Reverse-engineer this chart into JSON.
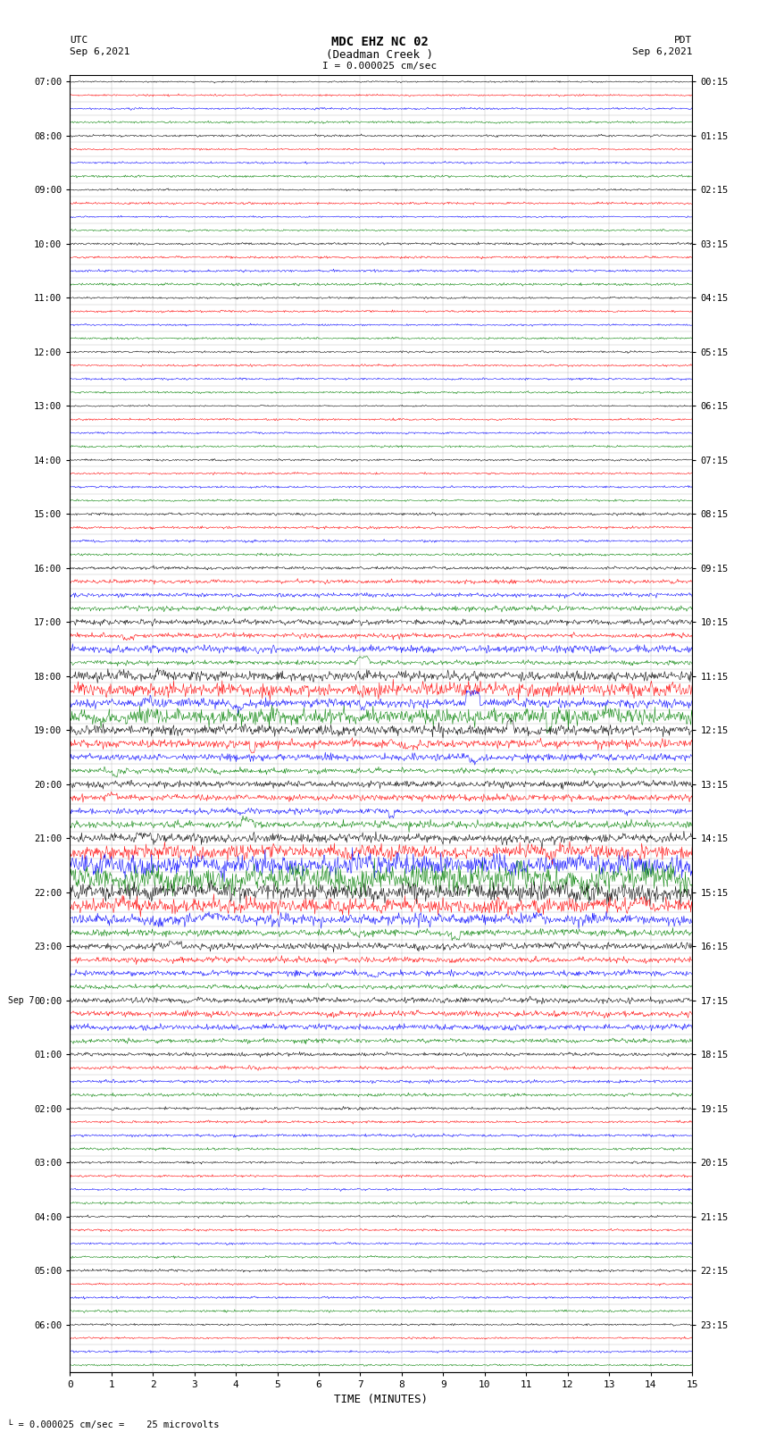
{
  "title_line1": "MDC EHZ NC 02",
  "title_line2": "(Deadman Creek )",
  "title_line3": "I = 0.000025 cm/sec",
  "utc_label": "UTC",
  "utc_date": "Sep 6,2021",
  "pdt_label": "PDT",
  "pdt_date": "Sep 6,2021",
  "xlabel": "TIME (MINUTES)",
  "bottom_note": "= 0.000025 cm/sec =    25 microvolts",
  "background_color": "#ffffff",
  "grid_color": "#aaaaaa",
  "trace_colors": [
    "black",
    "red",
    "blue",
    "green"
  ],
  "xlim": [
    0,
    15
  ],
  "xticks": [
    0,
    1,
    2,
    3,
    4,
    5,
    6,
    7,
    8,
    9,
    10,
    11,
    12,
    13,
    14,
    15
  ],
  "utc_times": [
    "07:00",
    "08:00",
    "09:00",
    "10:00",
    "11:00",
    "12:00",
    "13:00",
    "14:00",
    "15:00",
    "16:00",
    "17:00",
    "18:00",
    "19:00",
    "20:00",
    "21:00",
    "22:00",
    "23:00",
    "00:00",
    "01:00",
    "02:00",
    "03:00",
    "04:00",
    "05:00",
    "06:00"
  ],
  "pdt_times": [
    "00:15",
    "01:15",
    "02:15",
    "03:15",
    "04:15",
    "05:15",
    "06:15",
    "07:15",
    "08:15",
    "09:15",
    "10:15",
    "11:15",
    "12:15",
    "13:15",
    "14:15",
    "15:15",
    "16:15",
    "17:15",
    "18:15",
    "19:15",
    "20:15",
    "21:15",
    "22:15",
    "23:15"
  ],
  "sep7_utc_index": 17,
  "noise_seed": 42,
  "num_hours": 24,
  "traces_per_hour": 4,
  "amplitude_profile": [
    0.25,
    0.25,
    0.25,
    0.25,
    0.3,
    0.28,
    0.28,
    0.28,
    0.25,
    0.25,
    0.25,
    0.25,
    0.35,
    0.3,
    0.3,
    0.3,
    0.25,
    0.25,
    0.25,
    0.25,
    0.25,
    0.25,
    0.25,
    0.25,
    0.25,
    0.25,
    0.25,
    0.25,
    0.25,
    0.25,
    0.25,
    0.25,
    0.3,
    0.3,
    0.3,
    0.3,
    0.45,
    0.5,
    0.55,
    0.6,
    0.7,
    0.8,
    0.9,
    1.1,
    1.4,
    1.8,
    2.2,
    2.8,
    2.0,
    1.6,
    1.3,
    1.1,
    0.9,
    1.0,
    1.2,
    1.5,
    1.8,
    2.2,
    3.0,
    3.5,
    2.5,
    2.0,
    1.6,
    1.3,
    1.0,
    0.8,
    0.7,
    0.6,
    0.7,
    0.75,
    0.65,
    0.55,
    0.5,
    0.45,
    0.4,
    0.38,
    0.35,
    0.35,
    0.35,
    0.32,
    0.3,
    0.3,
    0.3,
    0.3,
    0.28,
    0.28,
    0.28,
    0.28,
    0.3,
    0.28,
    0.28,
    0.28,
    0.25,
    0.25,
    0.25,
    0.25
  ]
}
